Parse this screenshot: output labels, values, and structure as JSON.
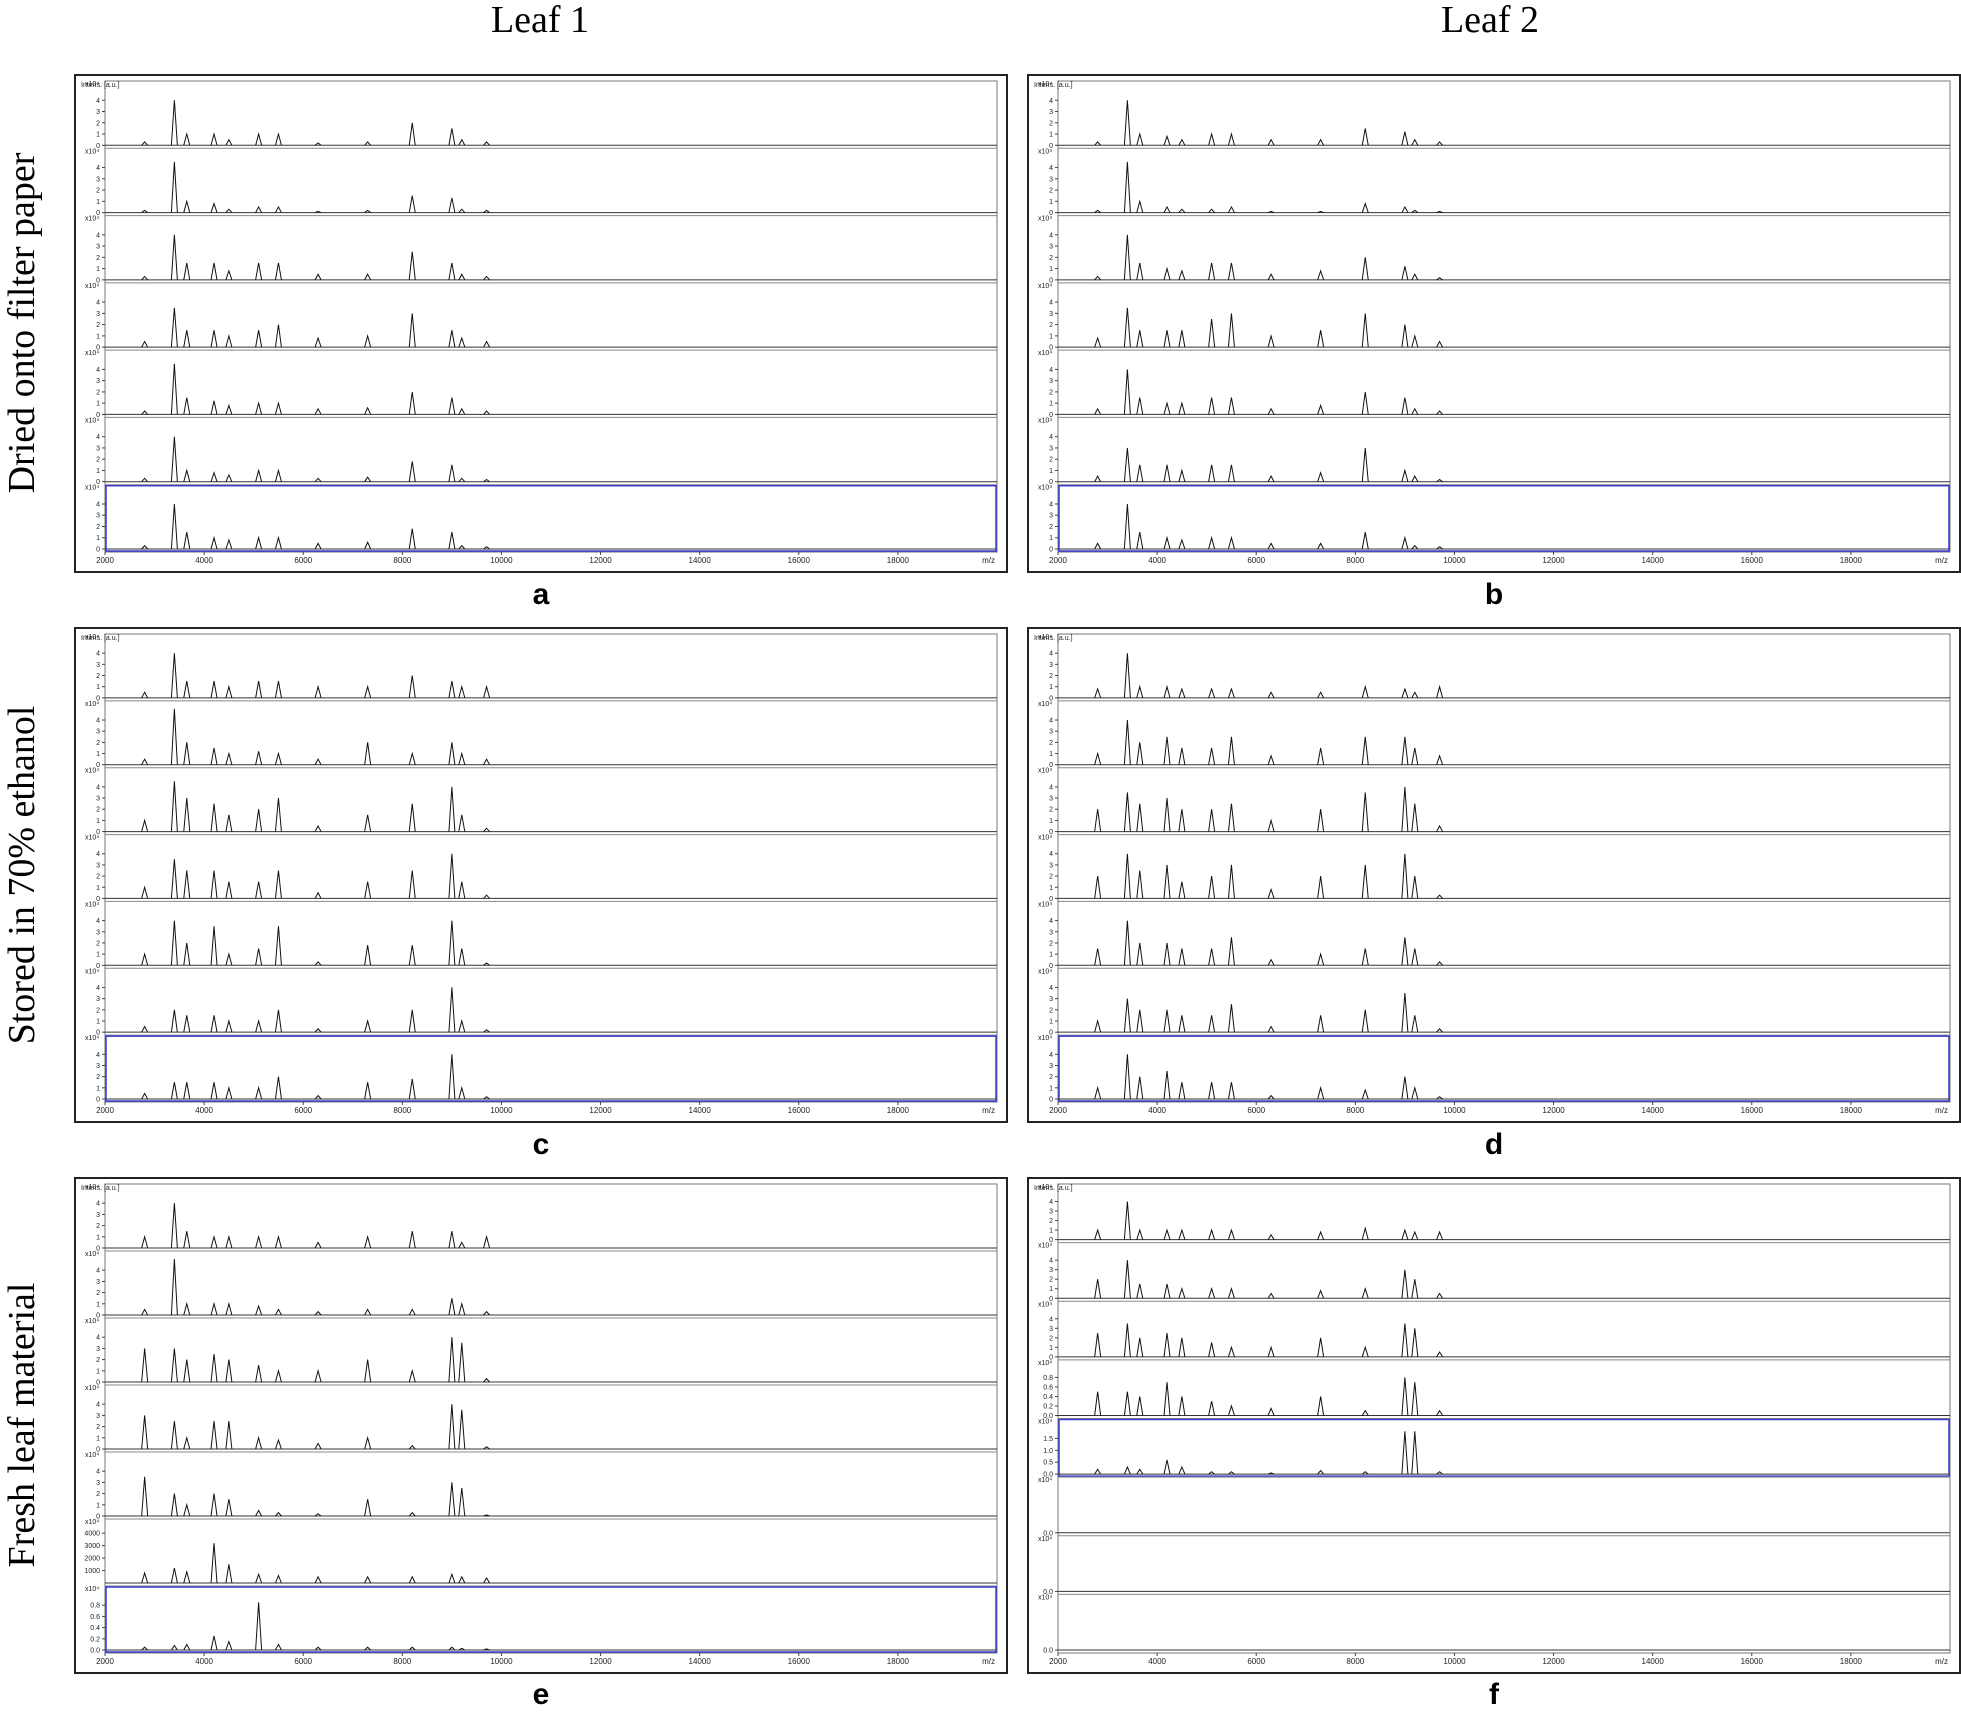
{
  "columns": [
    "Leaf 1",
    "Leaf 2"
  ],
  "rows": [
    "Dried onto filter paper",
    "Stored in 70% ethanol",
    "Fresh leaf material"
  ],
  "chart_data": [
    {
      "type": "stem",
      "label": "a",
      "x_unit": "m/z",
      "y_label": "Intens. [a.u.]",
      "y_scale": "x10⁴",
      "xlim": [
        2000,
        20000
      ],
      "xticks": [
        2000,
        4000,
        6000,
        8000,
        10000,
        12000,
        14000,
        16000,
        18000
      ],
      "ylim": [
        0,
        5
      ],
      "yticks": [
        0,
        1,
        2,
        3,
        4
      ],
      "color": "#111111",
      "selected": 6,
      "selected_color": "#3a3ad0",
      "x": [
        2800,
        3400,
        3650,
        4200,
        4500,
        5100,
        5500,
        6300,
        7300,
        8200,
        9000,
        9200,
        9700
      ],
      "series": [
        {
          "values": [
            0.3,
            4,
            1,
            1,
            0.5,
            1,
            1,
            0.2,
            0.3,
            2,
            1.5,
            0.5,
            0.3
          ]
        },
        {
          "values": [
            0.2,
            4.5,
            1,
            0.8,
            0.3,
            0.5,
            0.5,
            0.1,
            0.2,
            1.5,
            1.3,
            0.3,
            0.2
          ]
        },
        {
          "values": [
            0.3,
            4,
            1.5,
            1.5,
            0.8,
            1.5,
            1.5,
            0.5,
            0.5,
            2.5,
            1.5,
            0.5,
            0.3
          ]
        },
        {
          "values": [
            0.5,
            3.5,
            1.5,
            1.5,
            1,
            1.5,
            2,
            0.8,
            1,
            3,
            1.5,
            0.8,
            0.5
          ]
        },
        {
          "values": [
            0.3,
            4.5,
            1.5,
            1.2,
            0.8,
            1,
            1,
            0.5,
            0.6,
            2,
            1.5,
            0.5,
            0.3
          ]
        },
        {
          "values": [
            0.3,
            4,
            1,
            0.8,
            0.6,
            1,
            1,
            0.3,
            0.4,
            1.8,
            1.5,
            0.3,
            0.2
          ]
        },
        {
          "values": [
            0.3,
            4,
            1.5,
            1,
            0.8,
            1,
            1,
            0.5,
            0.6,
            1.8,
            1.5,
            0.3,
            0.2
          ]
        }
      ]
    },
    {
      "type": "stem",
      "label": "b",
      "x_unit": "m/z",
      "y_label": "Intens. [a.u.]",
      "y_scale": "x10⁴",
      "xlim": [
        2000,
        20000
      ],
      "xticks": [
        2000,
        4000,
        6000,
        8000,
        10000,
        12000,
        14000,
        16000,
        18000
      ],
      "ylim": [
        0,
        5
      ],
      "yticks": [
        0,
        1,
        2,
        3,
        4
      ],
      "color": "#111111",
      "selected": 6,
      "selected_color": "#3a3ad0",
      "x": [
        2800,
        3400,
        3650,
        4200,
        4500,
        5100,
        5500,
        6300,
        7300,
        8200,
        9000,
        9200,
        9700
      ],
      "series": [
        {
          "values": [
            0.3,
            4,
            1,
            0.8,
            0.5,
            1,
            1,
            0.5,
            0.5,
            1.5,
            1.2,
            0.5,
            0.3
          ]
        },
        {
          "values": [
            0.2,
            4.5,
            1,
            0.5,
            0.3,
            0.3,
            0.5,
            0.1,
            0.1,
            0.8,
            0.5,
            0.2,
            0.1
          ]
        },
        {
          "values": [
            0.3,
            4,
            1.5,
            1,
            0.8,
            1.5,
            1.5,
            0.5,
            0.8,
            2,
            1.2,
            0.5,
            0.2
          ]
        },
        {
          "values": [
            0.8,
            3.5,
            1.5,
            1.5,
            1.5,
            2.5,
            3,
            1,
            1.5,
            3,
            2,
            1,
            0.5
          ]
        },
        {
          "values": [
            0.5,
            4,
            1.5,
            1,
            1,
            1.5,
            1.5,
            0.5,
            0.8,
            2,
            1.5,
            0.5,
            0.3
          ]
        },
        {
          "values": [
            0.5,
            3,
            1.5,
            1.5,
            1,
            1.5,
            1.5,
            0.5,
            0.8,
            3,
            1,
            0.5,
            0.2
          ]
        },
        {
          "values": [
            0.5,
            4,
            1.5,
            1,
            0.8,
            1,
            1,
            0.5,
            0.5,
            1.5,
            1,
            0.3,
            0.2
          ]
        }
      ]
    },
    {
      "type": "stem",
      "label": "c",
      "x_unit": "m/z",
      "y_label": "Intens. [a.u.]",
      "y_scale": "x10⁴",
      "xlim": [
        2000,
        20000
      ],
      "xticks": [
        2000,
        4000,
        6000,
        8000,
        10000,
        12000,
        14000,
        16000,
        18000
      ],
      "ylim": [
        0,
        5
      ],
      "yticks": [
        0,
        1,
        2,
        3,
        4
      ],
      "color": "#111111",
      "selected": 6,
      "selected_color": "#3a3ad0",
      "x": [
        2800,
        3400,
        3650,
        4200,
        4500,
        5100,
        5500,
        6300,
        7300,
        8200,
        9000,
        9200,
        9700
      ],
      "series": [
        {
          "values": [
            0.5,
            4,
            1.5,
            1.5,
            1,
            1.5,
            1.5,
            1,
            1,
            2,
            1.5,
            1,
            1
          ]
        },
        {
          "values": [
            0.5,
            5,
            2,
            1.5,
            1,
            1.2,
            1,
            0.5,
            2,
            1,
            2,
            1,
            0.5
          ]
        },
        {
          "values": [
            1,
            4.5,
            3,
            2.5,
            1.5,
            2,
            3,
            0.5,
            1.5,
            2.5,
            4,
            1.5,
            0.3
          ]
        },
        {
          "values": [
            1,
            3.5,
            2.5,
            2.5,
            1.5,
            1.5,
            2.5,
            0.5,
            1.5,
            2.5,
            4,
            1.5,
            0.3
          ]
        },
        {
          "values": [
            1,
            4,
            2,
            3.5,
            1,
            1.5,
            3.5,
            0.3,
            1.8,
            1.8,
            4,
            1.5,
            0.2
          ]
        },
        {
          "values": [
            0.5,
            2,
            1.5,
            1.5,
            1,
            1,
            2,
            0.3,
            1,
            2,
            4,
            1,
            0.2
          ]
        },
        {
          "values": [
            0.5,
            1.5,
            1.5,
            1.5,
            1,
            1,
            2,
            0.3,
            1.5,
            1.8,
            4,
            1,
            0.2
          ]
        }
      ]
    },
    {
      "type": "stem",
      "label": "d",
      "x_unit": "m/z",
      "y_label": "Intens. [a.u.]",
      "y_scale": "x10⁴",
      "xlim": [
        2000,
        20000
      ],
      "xticks": [
        2000,
        4000,
        6000,
        8000,
        10000,
        12000,
        14000,
        16000,
        18000
      ],
      "ylim": [
        0,
        5
      ],
      "yticks": [
        0,
        1,
        2,
        3,
        4
      ],
      "color": "#111111",
      "selected": 6,
      "selected_color": "#3a3ad0",
      "x": [
        2800,
        3400,
        3650,
        4200,
        4500,
        5100,
        5500,
        6300,
        7300,
        8200,
        9000,
        9200,
        9700
      ],
      "series": [
        {
          "values": [
            0.8,
            4,
            1,
            1,
            0.8,
            0.8,
            0.8,
            0.5,
            0.5,
            1,
            0.8,
            0.5,
            1
          ]
        },
        {
          "values": [
            1,
            4,
            2,
            2.5,
            1.5,
            1.5,
            2.5,
            0.8,
            1.5,
            2.5,
            2.5,
            1.5,
            0.8
          ]
        },
        {
          "values": [
            2,
            3.5,
            2.5,
            3,
            2,
            2,
            2.5,
            1,
            2,
            3.5,
            4,
            2.5,
            0.5
          ]
        },
        {
          "values": [
            2,
            4,
            2.5,
            3,
            1.5,
            2,
            3,
            0.8,
            2,
            3,
            4,
            2,
            0.3
          ]
        },
        {
          "values": [
            1.5,
            4,
            2,
            2,
            1.5,
            1.5,
            2.5,
            0.5,
            1,
            1.5,
            2.5,
            1.5,
            0.3
          ]
        },
        {
          "values": [
            1,
            3,
            2,
            2,
            1.5,
            1.5,
            2.5,
            0.5,
            1.5,
            2,
            3.5,
            1.5,
            0.3
          ]
        },
        {
          "values": [
            1,
            4,
            2,
            2.5,
            1.5,
            1.5,
            1.5,
            0.3,
            1,
            0.8,
            2,
            1,
            0.2
          ]
        }
      ]
    },
    {
      "type": "stem",
      "label": "e",
      "x_unit": "m/z",
      "y_label": "Intens. [a.u.]",
      "y_scale": "x10⁴",
      "xlim": [
        2000,
        20000
      ],
      "xticks": [
        2000,
        4000,
        6000,
        8000,
        10000,
        12000,
        14000,
        16000,
        18000
      ],
      "ylim": [
        0,
        5
      ],
      "yticks": [
        0,
        1,
        2,
        3,
        4
      ],
      "color": "#111111",
      "selected": 6,
      "selected_color": "#3a3ad0",
      "x": [
        2800,
        3400,
        3650,
        4200,
        4500,
        5100,
        5500,
        6300,
        7300,
        8200,
        9000,
        9200,
        9700
      ],
      "series": [
        {
          "values": [
            1,
            4,
            1.5,
            1,
            1,
            1,
            1,
            0.5,
            1,
            1.5,
            1.5,
            0.5,
            1
          ]
        },
        {
          "values": [
            0.5,
            5,
            1,
            1,
            1,
            0.8,
            0.5,
            0.3,
            0.5,
            0.5,
            1.5,
            1,
            0.3
          ]
        },
        {
          "values": [
            3,
            3,
            2,
            2.5,
            2,
            1.5,
            1,
            1,
            2,
            1,
            4,
            3.5,
            0.3
          ]
        },
        {
          "values": [
            3,
            2.5,
            1,
            2.5,
            2.5,
            1,
            0.8,
            0.5,
            1,
            0.3,
            4,
            3.5,
            0.2
          ]
        },
        {
          "values": [
            3.5,
            2,
            1,
            2,
            1.5,
            0.5,
            0.3,
            0.2,
            1.5,
            0.3,
            3,
            2.5,
            0.1
          ]
        },
        {
          "ylim": [
            0,
            4500
          ],
          "yticks": [
            1000,
            2000,
            3000,
            4000
          ],
          "values": [
            800,
            1200,
            900,
            3200,
            1500,
            700,
            600,
            500,
            500,
            500,
            700,
            500,
            400
          ]
        },
        {
          "ylim": [
            0,
            1
          ],
          "yticks": [
            {
              "value": 0,
              "label": "0.0"
            },
            0.2,
            0.4,
            0.6,
            0.8
          ],
          "values": [
            0.05,
            0.08,
            0.1,
            0.25,
            0.15,
            0.85,
            0.1,
            0.05,
            0.05,
            0.05,
            0.05,
            0.03,
            0.02
          ]
        }
      ]
    },
    {
      "type": "stem",
      "label": "f",
      "x_unit": "m/z",
      "y_label": "Intens. [a.u.]",
      "y_scale": "x10⁴",
      "xlim": [
        2000,
        20000
      ],
      "xticks": [
        2000,
        4000,
        6000,
        8000,
        10000,
        12000,
        14000,
        16000,
        18000
      ],
      "ylim": [
        0,
        5
      ],
      "yticks": [
        0,
        1,
        2,
        3,
        4
      ],
      "color": "#111111",
      "selected": 4,
      "selected_color": "#3a3ad0",
      "x": [
        2800,
        3400,
        3650,
        4200,
        4500,
        5100,
        5500,
        6300,
        7300,
        8200,
        9000,
        9200,
        9700
      ],
      "series": [
        {
          "values": [
            1,
            4,
            1,
            1,
            1,
            1,
            1,
            0.5,
            0.8,
            1.2,
            1,
            0.8,
            0.8
          ]
        },
        {
          "values": [
            2,
            4,
            1.5,
            1.5,
            1,
            1,
            1,
            0.5,
            0.8,
            1,
            3,
            2,
            0.5
          ]
        },
        {
          "values": [
            2.5,
            3.5,
            2,
            2.5,
            2,
            1.5,
            1,
            1,
            2,
            1,
            3.5,
            3,
            0.5
          ]
        },
        {
          "ylim": [
            0,
            1
          ],
          "yticks": [
            {
              "value": 0,
              "label": "0.0"
            },
            0.2,
            0.4,
            0.6,
            0.8
          ],
          "values": [
            0.5,
            0.5,
            0.4,
            0.7,
            0.4,
            0.3,
            0.2,
            0.15,
            0.4,
            0.1,
            0.8,
            0.7,
            0.1
          ]
        },
        {
          "ylim": [
            0,
            2
          ],
          "yticks": [
            {
              "value": 0,
              "label": "0.0"
            },
            0.5,
            {
              "value": 1,
              "label": "1.0"
            },
            1.5
          ],
          "values": [
            0.2,
            0.3,
            0.2,
            0.6,
            0.3,
            0.1,
            0.1,
            0.05,
            0.15,
            0.1,
            1.8,
            1.8,
            0.1
          ]
        },
        {
          "ylim": [
            0,
            1
          ],
          "yticks": [
            {
              "value": 0,
              "label": "0.0"
            }
          ],
          "values": [
            null,
            null,
            null,
            null,
            null,
            null,
            null,
            null,
            null,
            null,
            null,
            null,
            null
          ]
        },
        {
          "ylim": [
            0,
            1
          ],
          "yticks": [
            {
              "value": 0,
              "label": "0.0"
            }
          ],
          "values": [
            null,
            null,
            null,
            null,
            null,
            null,
            null,
            null,
            null,
            null,
            null,
            null,
            null
          ]
        },
        {
          "ylim": [
            0,
            1
          ],
          "yticks": [
            {
              "value": 0,
              "label": "0.0"
            }
          ],
          "values": [
            null,
            null,
            null,
            null,
            null,
            null,
            null,
            null,
            null,
            null,
            null,
            null,
            null
          ]
        }
      ]
    }
  ]
}
